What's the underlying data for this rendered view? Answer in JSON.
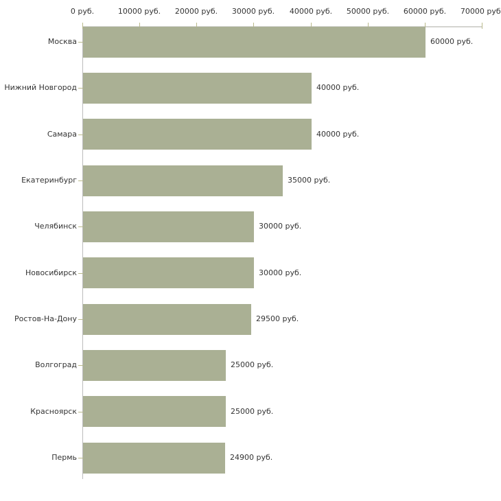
{
  "chart_data": {
    "type": "bar",
    "orientation": "horizontal",
    "title": "",
    "xlabel": "",
    "ylabel": "",
    "grid": false,
    "categories": [
      "Москва",
      "Нижний Новгород",
      "Самара",
      "Екатеринбург",
      "Челябинск",
      "Новосибирск",
      "Ростов-На-Дону",
      "Волгоград",
      "Красноярск",
      "Пермь"
    ],
    "values": [
      60000,
      40000,
      40000,
      35000,
      30000,
      30000,
      29500,
      25000,
      25000,
      24900
    ],
    "value_labels": [
      "60000 руб.",
      "40000 руб.",
      "40000 руб.",
      "35000 руб.",
      "30000 руб.",
      "30000 руб.",
      "29500 руб.",
      "25000 руб.",
      "25000 руб.",
      "24900 руб."
    ],
    "x_axis": {
      "position": "top",
      "min": 0,
      "max": 70000,
      "ticks": [
        0,
        10000,
        20000,
        30000,
        40000,
        50000,
        60000,
        70000
      ],
      "tick_labels": [
        "0 руб.",
        "10000 руб.",
        "20000 руб.",
        "30000 руб.",
        "40000 руб.",
        "50000 руб.",
        "60000 руб.",
        "70000 руб."
      ]
    },
    "colors": {
      "bar": "#aab094",
      "axis_line": "#d4d4d0",
      "axis_line_vertical": "#bcbcbc",
      "tick": "#b9b98b",
      "text": "#333333",
      "background": "#ffffff"
    }
  }
}
